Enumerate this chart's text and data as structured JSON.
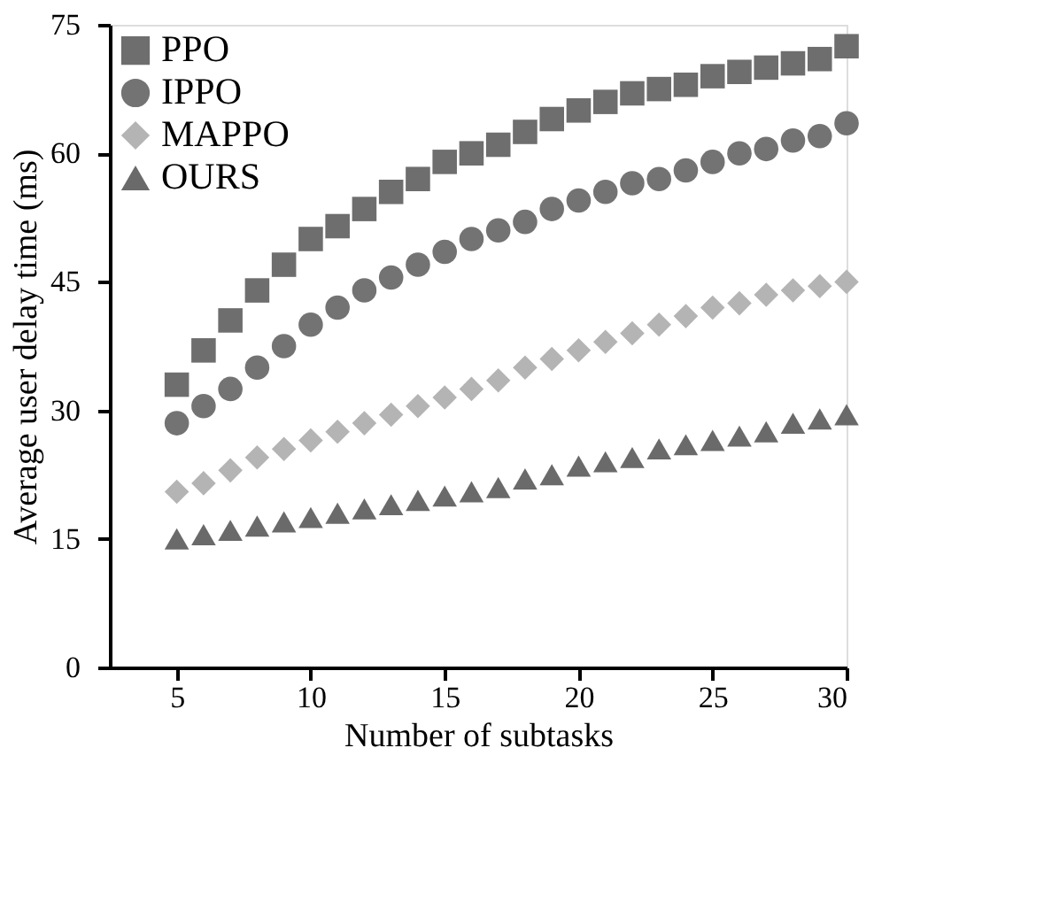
{
  "chart_data": {
    "type": "scatter",
    "xlabel": "Number of subtasks",
    "ylabel": "Average user delay time (ms)",
    "x": [
      5,
      6,
      7,
      8,
      9,
      10,
      11,
      12,
      13,
      14,
      15,
      16,
      17,
      18,
      19,
      20,
      21,
      22,
      23,
      24,
      25,
      26,
      27,
      28,
      29,
      30
    ],
    "series": [
      {
        "name": "PPO",
        "color": "#6e6e6e",
        "marker": "square",
        "values": [
          33,
          37,
          40.5,
          44,
          47,
          50,
          51.5,
          53.5,
          55.5,
          57,
          59,
          60,
          61,
          62.5,
          64,
          65,
          66,
          67,
          67.5,
          68,
          69,
          69.5,
          70,
          70.5,
          71,
          72.5
        ]
      },
      {
        "name": "IPPO",
        "color": "#737373",
        "marker": "circle",
        "values": [
          28.5,
          30.5,
          32.5,
          35,
          37.5,
          40,
          42,
          44,
          45.5,
          47,
          48.5,
          50,
          51,
          52,
          53.5,
          54.5,
          55.5,
          56.5,
          57,
          58,
          59,
          60,
          60.5,
          61.5,
          62,
          63.5
        ]
      },
      {
        "name": "MAPPO",
        "color": "#b4b4b4",
        "marker": "diamond",
        "values": [
          20.5,
          21.5,
          23,
          24.5,
          25.5,
          26.5,
          27.5,
          28.5,
          29.5,
          30.5,
          31.5,
          32.5,
          33.5,
          35,
          36,
          37,
          38,
          39,
          40,
          41,
          42,
          42.5,
          43.5,
          44,
          44.5,
          45
        ]
      },
      {
        "name": "OURS",
        "color": "#6a6a6a",
        "marker": "triangle",
        "values": [
          15,
          15.5,
          16,
          16.5,
          17,
          17.5,
          18,
          18.5,
          19,
          19.5,
          20,
          20.5,
          21,
          22,
          22.5,
          23.5,
          24,
          24.5,
          25.5,
          26,
          26.5,
          27,
          27.5,
          28.5,
          29,
          29.5
        ]
      }
    ],
    "xlim": [
      2.5,
      30
    ],
    "xticks": [
      5,
      10,
      15,
      20,
      25,
      30
    ],
    "ylim": [
      0,
      75
    ],
    "yticks": [
      0,
      15,
      30,
      45,
      60,
      75
    ],
    "grid": false,
    "legend": "top left"
  }
}
